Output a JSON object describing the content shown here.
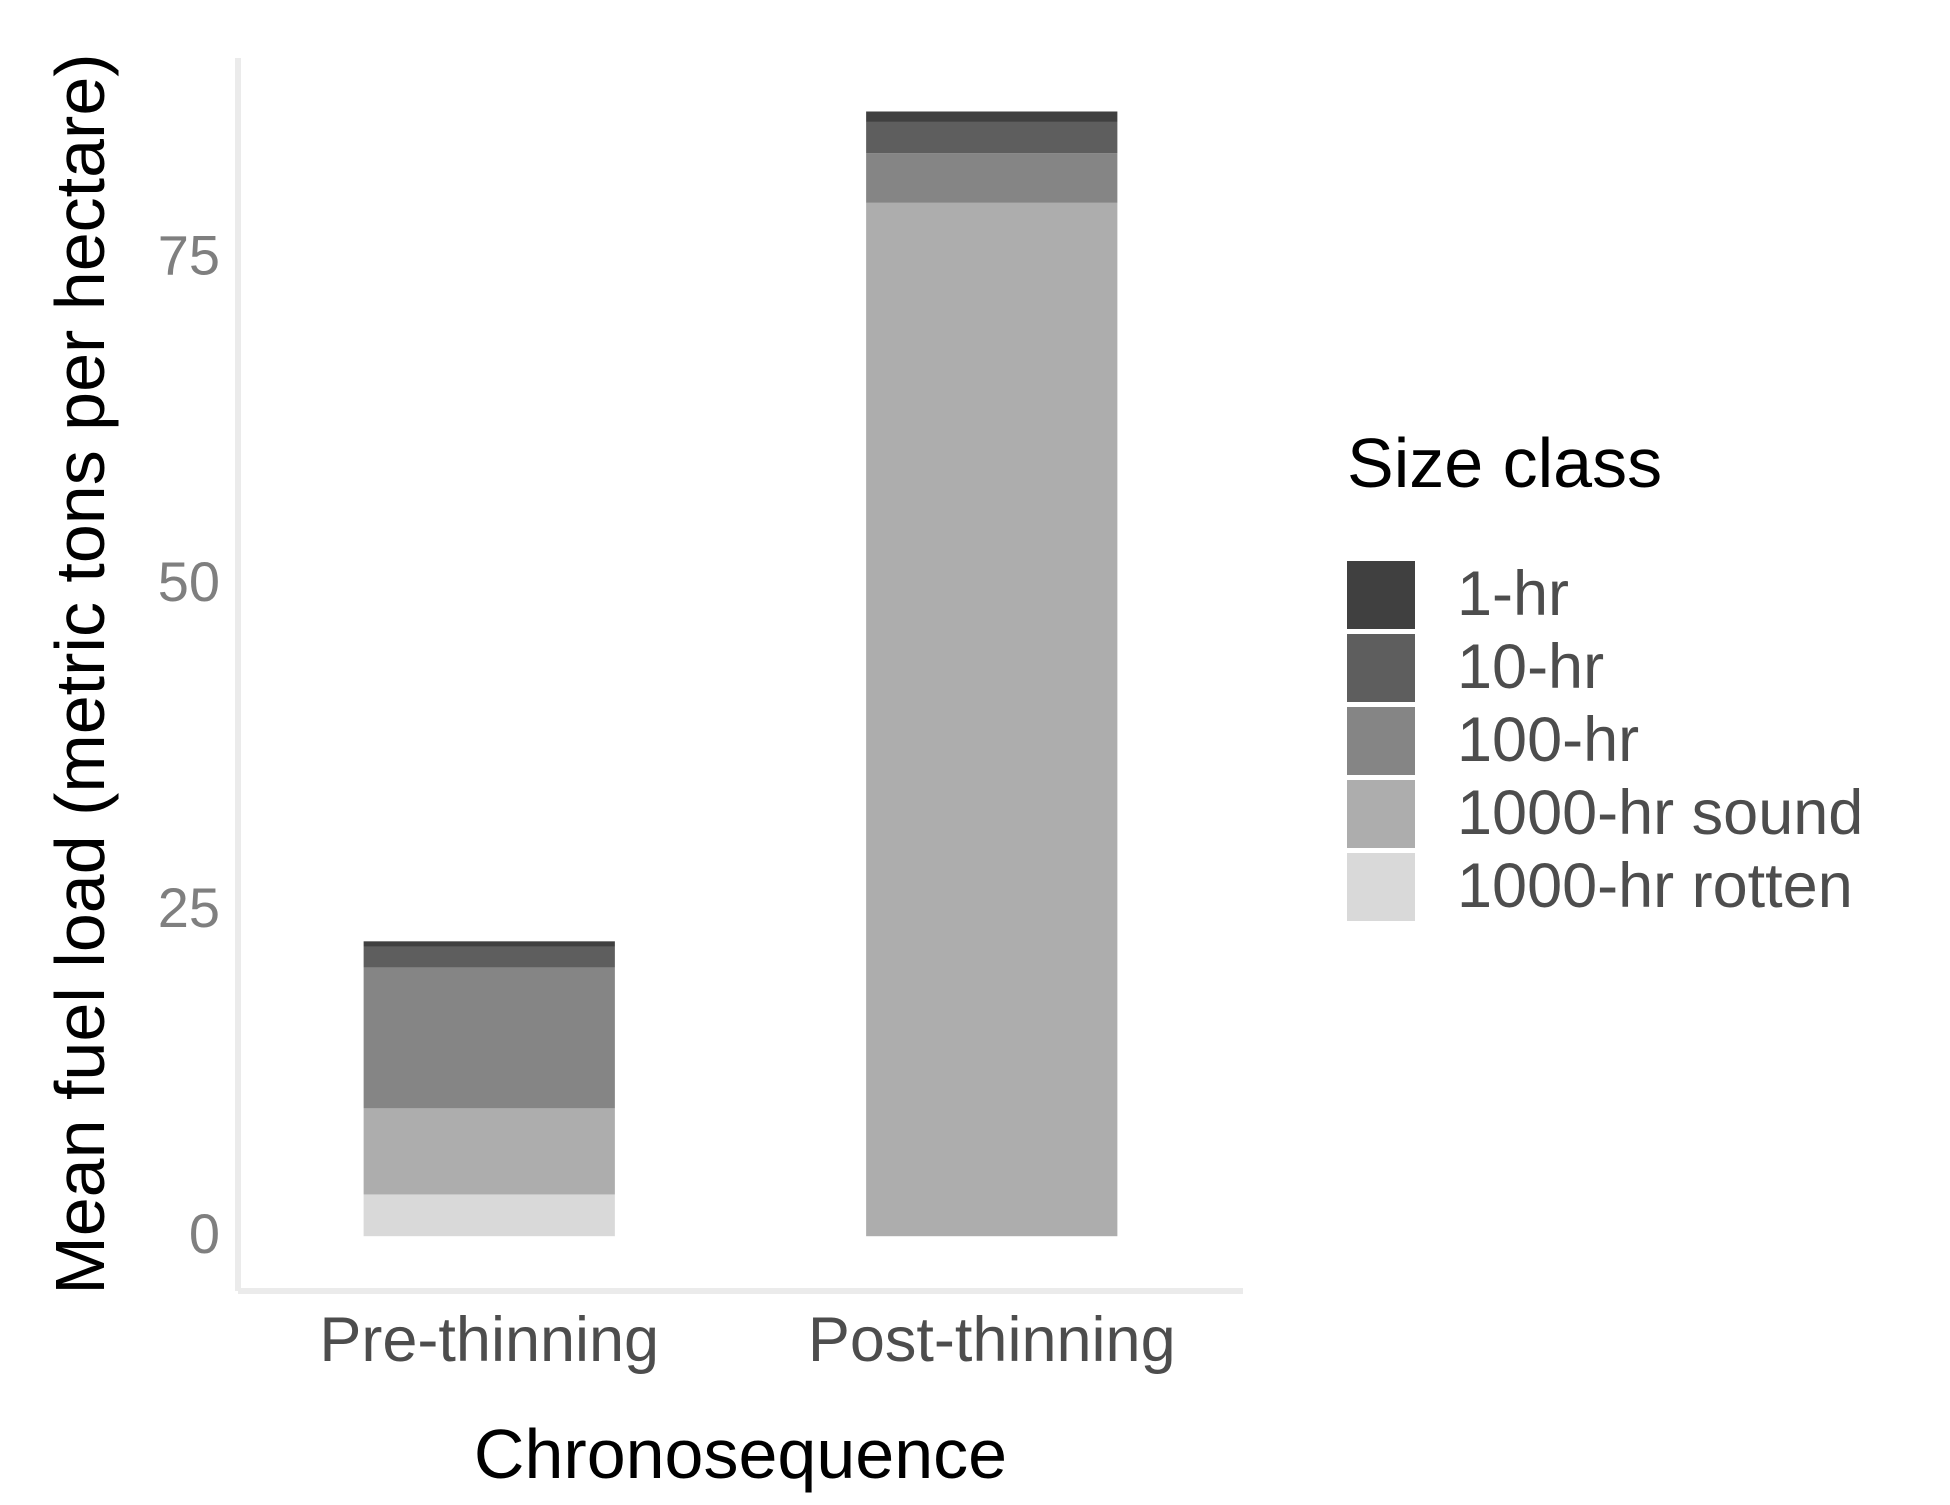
{
  "chart_data": {
    "type": "bar",
    "stacked": true,
    "title": "",
    "xlabel": "Chronosequence",
    "ylabel": "Mean fuel load (metric tons per hectare)",
    "categories": [
      "Pre-thinning",
      "Post-thinning"
    ],
    "series": [
      {
        "name": "1000-hr rotten",
        "color": "#d9d9d9",
        "values": [
          3.2,
          0.0
        ]
      },
      {
        "name": "1000-hr sound",
        "color": "#adadad",
        "values": [
          6.6,
          79.2
        ]
      },
      {
        "name": "100-hr",
        "color": "#858585",
        "values": [
          10.8,
          3.8
        ]
      },
      {
        "name": "10-hr",
        "color": "#5e5e5e",
        "values": [
          1.6,
          2.4
        ]
      },
      {
        "name": "1-hr",
        "color": "#404040",
        "values": [
          0.4,
          0.8
        ]
      }
    ],
    "yticks": [
      0,
      25,
      50,
      75
    ],
    "ylim": [
      -4.2,
      90.3
    ],
    "grid": false,
    "legend": {
      "title": "Size class",
      "placement": "right",
      "order": [
        "1-hr",
        "10-hr",
        "100-hr",
        "1000-hr sound",
        "1000-hr rotten"
      ]
    },
    "colors": {
      "axis_line": "#ebebeb",
      "tick_text": "#7f7f7f",
      "category_text": "#4d4d4d",
      "legend_text": "#4d4d4d",
      "title_text": "#000000"
    }
  }
}
